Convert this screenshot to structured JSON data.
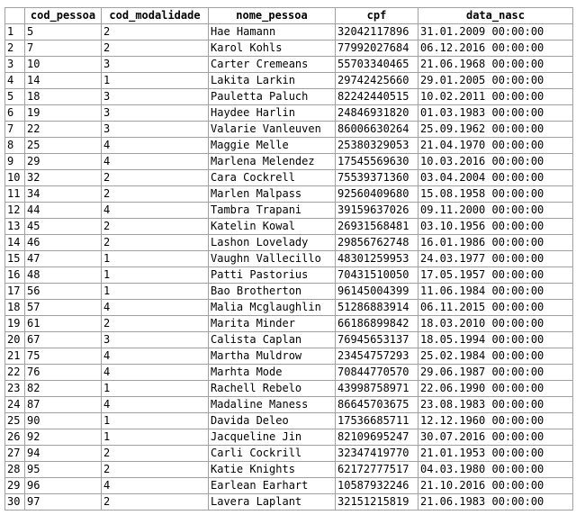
{
  "columns": [
    "",
    "cod_pessoa",
    "cod_modalidade",
    "nome_pessoa",
    "cpf",
    "data_nasc"
  ],
  "rows": [
    [
      "1",
      "5",
      "2",
      "Hae Hamann",
      "32042117896",
      "31.01.2009 00:00:00"
    ],
    [
      "2",
      "7",
      "2",
      "Karol Kohls",
      "77992027684",
      "06.12.2016 00:00:00"
    ],
    [
      "3",
      "10",
      "3",
      "Carter Cremeans",
      "55703340465",
      "21.06.1968 00:00:00"
    ],
    [
      "4",
      "14",
      "1",
      "Lakita Larkin",
      "29742425660",
      "29.01.2005 00:00:00"
    ],
    [
      "5",
      "18",
      "3",
      "Pauletta Paluch",
      "82242440515",
      "10.02.2011 00:00:00"
    ],
    [
      "6",
      "19",
      "3",
      "Haydee Harlin",
      "24846931820",
      "01.03.1983 00:00:00"
    ],
    [
      "7",
      "22",
      "3",
      "Valarie Vanleuven",
      "86006630264",
      "25.09.1962 00:00:00"
    ],
    [
      "8",
      "25",
      "4",
      "Maggie Melle",
      "25380329053",
      "21.04.1970 00:00:00"
    ],
    [
      "9",
      "29",
      "4",
      "Marlena Melendez",
      "17545569630",
      "10.03.2016 00:00:00"
    ],
    [
      "10",
      "32",
      "2",
      "Cara Cockrell",
      "75539371360",
      "03.04.2004 00:00:00"
    ],
    [
      "11",
      "34",
      "2",
      "Marlen Malpass",
      "92560409680",
      "15.08.1958 00:00:00"
    ],
    [
      "12",
      "44",
      "4",
      "Tambra Trapani",
      "39159637026",
      "09.11.2000 00:00:00"
    ],
    [
      "13",
      "45",
      "2",
      "Katelin Kowal",
      "26931568481",
      "03.10.1956 00:00:00"
    ],
    [
      "14",
      "46",
      "2",
      "Lashon Lovelady",
      "29856762748",
      "16.01.1986 00:00:00"
    ],
    [
      "15",
      "47",
      "1",
      "Vaughn Vallecillo",
      "48301259953",
      "24.03.1977 00:00:00"
    ],
    [
      "16",
      "48",
      "1",
      "Patti Pastorius",
      "70431510050",
      "17.05.1957 00:00:00"
    ],
    [
      "17",
      "56",
      "1",
      "Bao Brotherton",
      "96145004399",
      "11.06.1984 00:00:00"
    ],
    [
      "18",
      "57",
      "4",
      "Malia Mcglaughlin",
      "51286883914",
      "06.11.2015 00:00:00"
    ],
    [
      "19",
      "61",
      "2",
      "Marita Minder",
      "66186899842",
      "18.03.2010 00:00:00"
    ],
    [
      "20",
      "67",
      "3",
      "Calista Caplan",
      "76945653137",
      "18.05.1994 00:00:00"
    ],
    [
      "21",
      "75",
      "4",
      "Martha Muldrow",
      "23454757293",
      "25.02.1984 00:00:00"
    ],
    [
      "22",
      "76",
      "4",
      "Marhta Mode",
      "70844770570",
      "29.06.1987 00:00:00"
    ],
    [
      "23",
      "82",
      "1",
      "Rachell Rebelo",
      "43998758971",
      "22.06.1990 00:00:00"
    ],
    [
      "24",
      "87",
      "4",
      "Madaline Maness",
      "86645703675",
      "23.08.1983 00:00:00"
    ],
    [
      "25",
      "90",
      "1",
      "Davida Deleo",
      "17536685711",
      "12.12.1960 00:00:00"
    ],
    [
      "26",
      "92",
      "1",
      "Jacqueline Jin",
      "82109695247",
      "30.07.2016 00:00:00"
    ],
    [
      "27",
      "94",
      "2",
      "Carli Cockrill",
      "32347419770",
      "21.01.1953 00:00:00"
    ],
    [
      "28",
      "95",
      "2",
      "Katie Knights",
      "62172777517",
      "04.03.1980 00:00:00"
    ],
    [
      "29",
      "96",
      "4",
      "Earlean Earhart",
      "10587932246",
      "21.10.2016 00:00:00"
    ],
    [
      "30",
      "97",
      "2",
      "Lavera Laplant",
      "32151215819",
      "21.06.1983 00:00:00"
    ]
  ]
}
